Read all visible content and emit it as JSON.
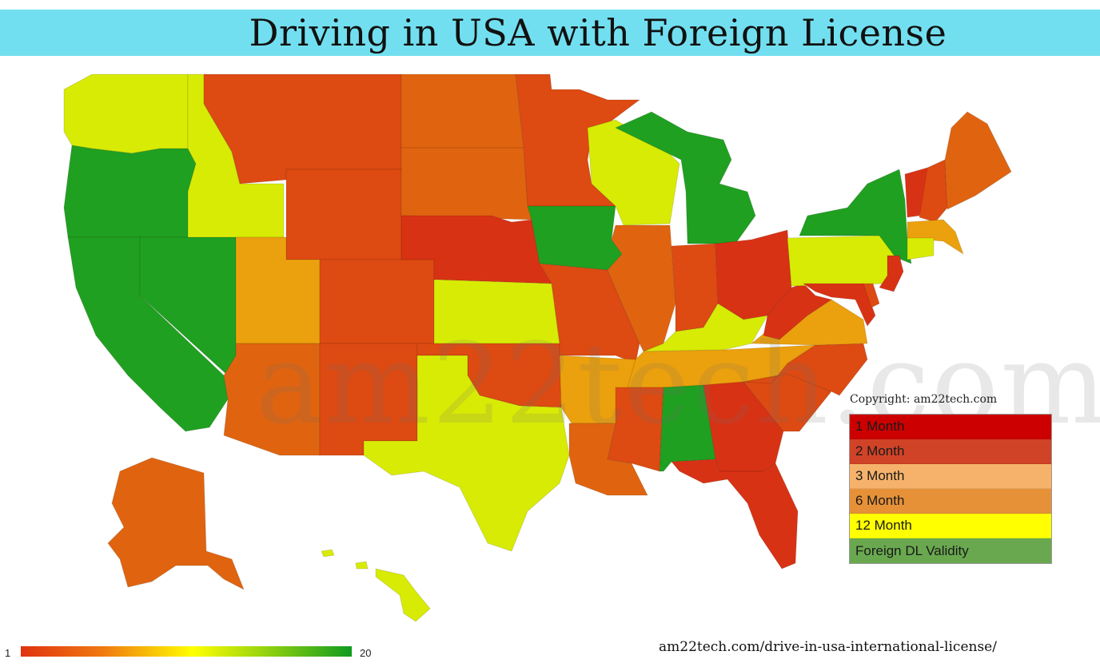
{
  "title": "Driving in USA with Foreign License",
  "watermark": "am22tech.com",
  "copyright": "Copyright: am22tech.com",
  "legend": [
    {
      "label": "1 Month",
      "color": "#cc0000"
    },
    {
      "label": "2 Month",
      "color": "#d04327"
    },
    {
      "label": "3 Month",
      "color": "#f6b26b"
    },
    {
      "label": "6 Month",
      "color": "#e69138"
    },
    {
      "label": "12 Month",
      "color": "#ffff00"
    },
    {
      "label": "Foreign DL Validity",
      "color": "#6aa84f"
    }
  ],
  "scale": {
    "min": "1",
    "max": "20"
  },
  "source_url": "am22tech.com/drive-in-usa-international-license/",
  "palette": {
    "green": "#20a020",
    "yellow": "#d8eb05",
    "orange": "#e06410",
    "light_orange": "#eba00d",
    "red_orange": "#dd4a12",
    "red": "#d83214"
  },
  "states": [
    {
      "code": "WA",
      "tier": "yellow"
    },
    {
      "code": "OR",
      "tier": "green"
    },
    {
      "code": "CA",
      "tier": "green"
    },
    {
      "code": "NV",
      "tier": "green"
    },
    {
      "code": "ID",
      "tier": "yellow"
    },
    {
      "code": "MT",
      "tier": "red_orange"
    },
    {
      "code": "WY",
      "tier": "red_orange"
    },
    {
      "code": "UT",
      "tier": "light_orange"
    },
    {
      "code": "AZ",
      "tier": "orange"
    },
    {
      "code": "CO",
      "tier": "red_orange"
    },
    {
      "code": "NM",
      "tier": "red_orange"
    },
    {
      "code": "ND",
      "tier": "orange"
    },
    {
      "code": "SD",
      "tier": "orange"
    },
    {
      "code": "NE",
      "tier": "red"
    },
    {
      "code": "KS",
      "tier": "yellow"
    },
    {
      "code": "OK",
      "tier": "red_orange"
    },
    {
      "code": "TX",
      "tier": "yellow"
    },
    {
      "code": "MN",
      "tier": "red_orange"
    },
    {
      "code": "IA",
      "tier": "green"
    },
    {
      "code": "MO",
      "tier": "red_orange"
    },
    {
      "code": "AR",
      "tier": "light_orange"
    },
    {
      "code": "LA",
      "tier": "orange"
    },
    {
      "code": "WI",
      "tier": "yellow"
    },
    {
      "code": "IL",
      "tier": "orange"
    },
    {
      "code": "MI",
      "tier": "green"
    },
    {
      "code": "IN",
      "tier": "red_orange"
    },
    {
      "code": "OH",
      "tier": "red"
    },
    {
      "code": "KY",
      "tier": "yellow"
    },
    {
      "code": "TN",
      "tier": "light_orange"
    },
    {
      "code": "MS",
      "tier": "red_orange"
    },
    {
      "code": "AL",
      "tier": "green"
    },
    {
      "code": "GA",
      "tier": "red"
    },
    {
      "code": "FL",
      "tier": "red"
    },
    {
      "code": "SC",
      "tier": "red_orange"
    },
    {
      "code": "NC",
      "tier": "red_orange"
    },
    {
      "code": "VA",
      "tier": "light_orange"
    },
    {
      "code": "WV",
      "tier": "red"
    },
    {
      "code": "PA",
      "tier": "yellow"
    },
    {
      "code": "NY",
      "tier": "green"
    },
    {
      "code": "VT",
      "tier": "red"
    },
    {
      "code": "NH",
      "tier": "red_orange"
    },
    {
      "code": "ME",
      "tier": "orange"
    },
    {
      "code": "MA",
      "tier": "light_orange"
    },
    {
      "code": "CT",
      "tier": "yellow"
    },
    {
      "code": "NJ",
      "tier": "red"
    },
    {
      "code": "MD",
      "tier": "red"
    },
    {
      "code": "DE",
      "tier": "red_orange"
    },
    {
      "code": "AK",
      "tier": "orange"
    },
    {
      "code": "HI",
      "tier": "yellow"
    }
  ]
}
